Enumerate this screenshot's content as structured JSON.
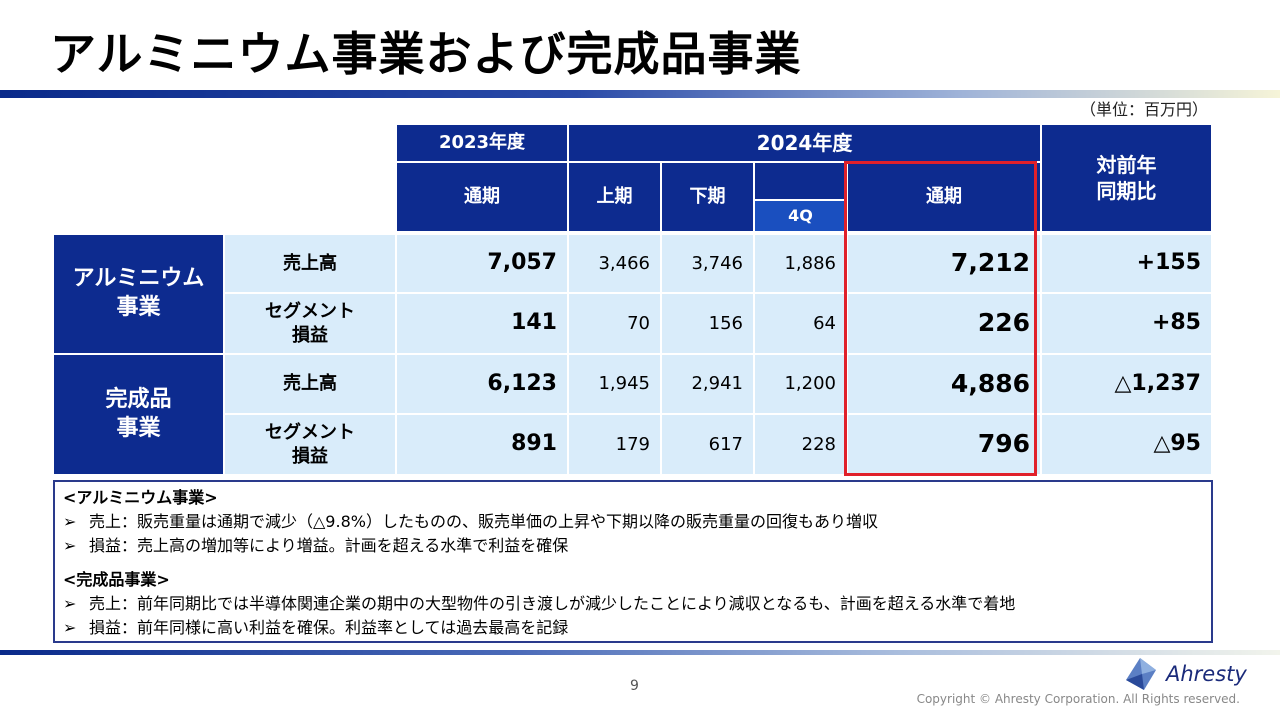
{
  "title": "アルミニウム事業および完成品事業",
  "unit": "（単位：百万円）",
  "table": {
    "year_2023": "2023年度",
    "year_2024": "2024年度",
    "full_year_2023": "通期",
    "h1": "上期",
    "h2": "下期",
    "q4": "4Q",
    "full_year_2024": "通期",
    "yoy": "対前年\n同期比",
    "segments": [
      {
        "name": "アルミニウム\n事業",
        "rows": [
          {
            "label": "売上高",
            "fy2023": "7,057",
            "h1": "3,466",
            "h2": "3,746",
            "q4": "1,886",
            "fy2024": "7,212",
            "yoy": "+155"
          },
          {
            "label": "セグメント\n損益",
            "fy2023": "141",
            "h1": "70",
            "h2": "156",
            "q4": "64",
            "fy2024": "226",
            "yoy": "+85"
          }
        ]
      },
      {
        "name": "完成品\n事業",
        "rows": [
          {
            "label": "売上高",
            "fy2023": "6,123",
            "h1": "1,945",
            "h2": "2,941",
            "q4": "1,200",
            "fy2024": "4,886",
            "yoy": "△1,237"
          },
          {
            "label": "セグメント\n損益",
            "fy2023": "891",
            "h1": "179",
            "h2": "617",
            "q4": "228",
            "fy2024": "796",
            "yoy": "△95"
          }
        ]
      }
    ]
  },
  "notes": [
    {
      "heading": "<アルミニウム事業>",
      "lines": [
        "売上：販売重量は通期で減少（△9.8%）したものの、販売単価の上昇や下期以降の販売重量の回復もあり増収",
        "損益：売上高の増加等により増益。計画を超える水準で利益を確保"
      ]
    },
    {
      "heading": "<完成品事業>",
      "lines": [
        "売上：前年同期比では半導体関連企業の期中の大型物件の引き渡しが減少したことにより減収となるも、計画を超える水準で着地",
        "損益：前年同様に高い利益を確保。利益率としては過去最高を記録"
      ]
    }
  ],
  "bullet_glyph": "➢",
  "page_number": "9",
  "logo_text": "Ahresty",
  "copyright": "Copyright © Ahresty Corporation. All Rights reserved.",
  "colors": {
    "header_navy": "#0d2b8f",
    "cell_light_blue": "#d9ecfa",
    "highlight_red": "#e0202a"
  }
}
